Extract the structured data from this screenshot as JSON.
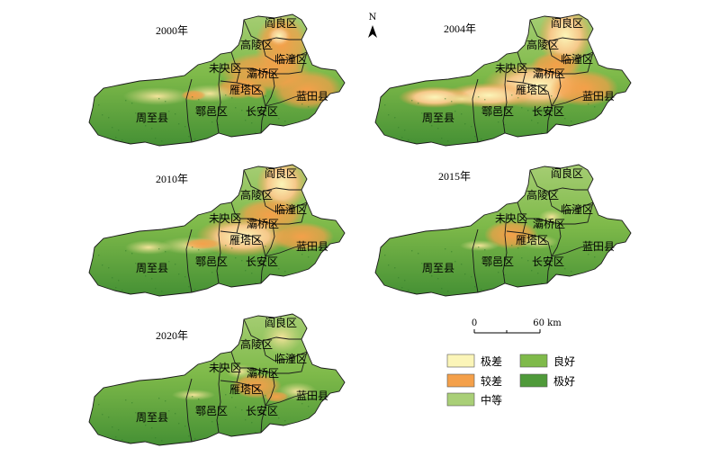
{
  "maps": [
    {
      "year": "2000年",
      "mode": "y2000"
    },
    {
      "year": "2004年",
      "mode": "y2004"
    },
    {
      "year": "2010年",
      "mode": "y2010"
    },
    {
      "year": "2015年",
      "mode": "y2015"
    },
    {
      "year": "2020年",
      "mode": "y2020"
    }
  ],
  "districts": [
    "阎良区",
    "高陵区",
    "临潼区",
    "未央区",
    "灞桥区",
    "雁塔区",
    "蓝田县",
    "长安区",
    "鄠邑区",
    "周至县"
  ],
  "north": "N",
  "scale": {
    "zero": "0",
    "max": "60 km"
  },
  "legend": [
    {
      "label": "极差",
      "color": "#fbf5b8"
    },
    {
      "label": "较差",
      "color": "#f4a04a"
    },
    {
      "label": "中等",
      "color": "#a9cf77"
    },
    {
      "label": "良好",
      "color": "#7fba4a"
    },
    {
      "label": "极好",
      "color": "#4f9a3a"
    }
  ]
}
